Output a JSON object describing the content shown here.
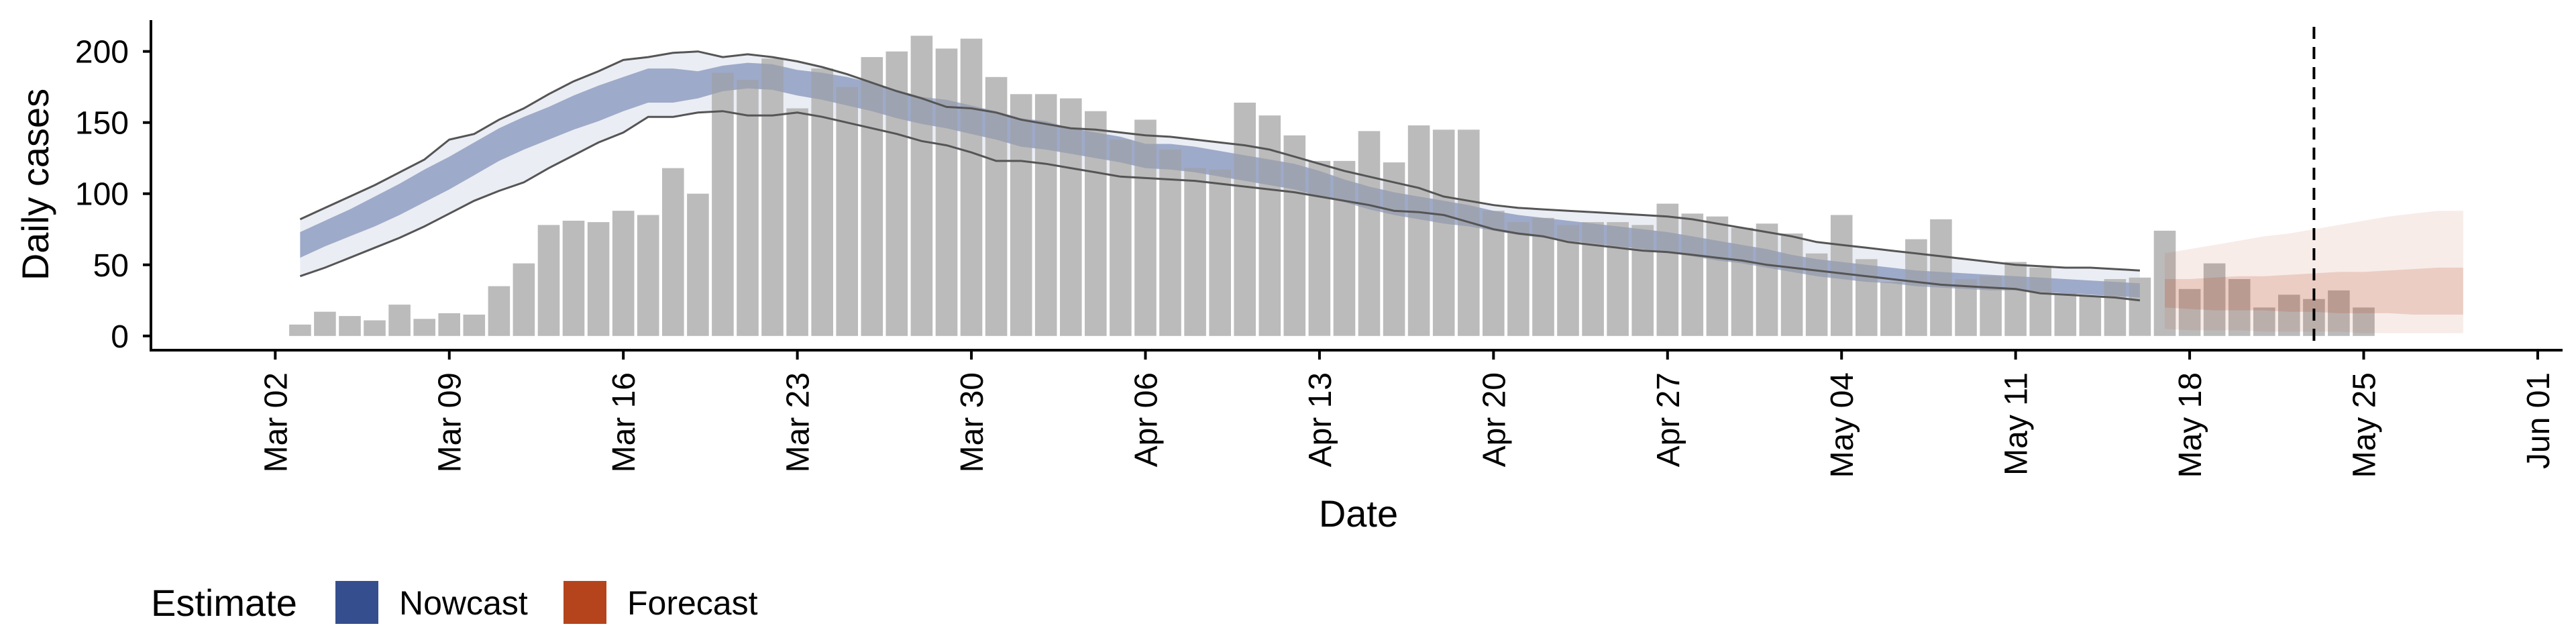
{
  "chart_data": {
    "type": "bar",
    "xlabel": "Date",
    "ylabel": "Daily cases",
    "ylim": [
      -10,
      222
    ],
    "y_ticks": [
      0,
      50,
      100,
      150,
      200
    ],
    "x_ticks": [
      "Mar 02",
      "Mar 09",
      "Mar 16",
      "Mar 23",
      "Mar 30",
      "Apr 06",
      "Apr 13",
      "Apr 20",
      "Apr 27",
      "May 04",
      "May 11",
      "May 18",
      "May 25",
      "Jun 01"
    ],
    "x_range": [
      "2020-02-26",
      "2020-06-02"
    ],
    "grid": false,
    "bar_color": "#bbbbbb",
    "bars": {
      "start_date": "2020-03-03",
      "values": [
        8,
        17,
        14,
        11,
        22,
        12,
        16,
        15,
        35,
        51,
        78,
        81,
        80,
        88,
        85,
        118,
        100,
        185,
        180,
        195,
        160,
        188,
        175,
        196,
        200,
        211,
        202,
        209,
        182,
        170,
        170,
        167,
        158,
        138,
        152,
        131,
        118,
        117,
        164,
        155,
        141,
        123,
        123,
        144,
        122,
        148,
        145,
        145,
        88,
        80,
        83,
        78,
        80,
        80,
        78,
        93,
        86,
        84,
        76,
        79,
        72,
        58,
        85,
        54,
        38,
        68,
        82,
        40,
        42,
        52,
        48,
        30,
        28,
        40,
        41,
        74,
        33,
        51,
        40,
        20,
        29,
        26,
        32,
        20
      ]
    },
    "series": [
      {
        "name": "Nowcast",
        "color": "#354f8e",
        "start_date": "2020-03-03",
        "median": [
          64,
          72,
          80,
          88,
          97,
          106,
          115,
          125,
          135,
          143,
          150,
          158,
          164,
          170,
          176,
          176,
          176,
          181,
          183,
          182,
          178,
          176,
          172,
          168,
          163,
          159,
          156,
          152,
          148,
          143,
          141,
          137,
          134,
          131,
          126,
          126,
          124,
          121,
          118,
          115,
          112,
          107,
          102,
          97,
          93,
          90,
          87,
          84,
          81,
          78,
          76,
          74,
          72,
          70,
          68,
          66,
          63,
          60,
          57,
          54,
          51,
          48,
          46,
          44,
          42,
          40,
          39,
          38,
          37,
          37,
          36,
          35,
          34,
          33,
          32
        ],
        "inner_low": [
          55,
          63,
          70,
          77,
          85,
          94,
          103,
          113,
          123,
          131,
          138,
          145,
          151,
          158,
          164,
          164,
          167,
          172,
          174,
          173,
          169,
          166,
          162,
          158,
          153,
          149,
          146,
          142,
          138,
          133,
          131,
          128,
          125,
          122,
          118,
          117,
          115,
          112,
          109,
          106,
          103,
          98,
          94,
          89,
          85,
          82,
          79,
          77,
          74,
          71,
          69,
          67,
          65,
          63,
          61,
          59,
          56,
          53,
          51,
          48,
          45,
          42,
          40,
          38,
          37,
          35,
          34,
          33,
          32,
          32,
          31,
          30,
          29,
          28,
          27
        ],
        "inner_high": [
          73,
          81,
          89,
          98,
          107,
          117,
          126,
          136,
          146,
          154,
          161,
          169,
          176,
          182,
          188,
          188,
          186,
          190,
          192,
          191,
          187,
          185,
          182,
          178,
          173,
          168,
          166,
          162,
          158,
          153,
          151,
          146,
          143,
          140,
          135,
          135,
          133,
          130,
          127,
          124,
          121,
          116,
          110,
          105,
          101,
          98,
          95,
          92,
          88,
          85,
          83,
          81,
          79,
          77,
          75,
          73,
          70,
          67,
          64,
          61,
          57,
          54,
          52,
          50,
          48,
          46,
          45,
          44,
          43,
          42,
          41,
          40,
          39,
          38,
          37
        ],
        "low": [
          42,
          48,
          55,
          62,
          69,
          77,
          86,
          95,
          102,
          108,
          118,
          127,
          136,
          143,
          154,
          154,
          157,
          158,
          155,
          155,
          157,
          154,
          150,
          146,
          142,
          137,
          134,
          129,
          123,
          123,
          121,
          118,
          115,
          112,
          111,
          110,
          109,
          107,
          105,
          103,
          101,
          98,
          95,
          92,
          88,
          87,
          85,
          80,
          75,
          72,
          70,
          66,
          64,
          62,
          60,
          59,
          57,
          55,
          53,
          50,
          48,
          46,
          44,
          42,
          40,
          38,
          36,
          35,
          34,
          33,
          30,
          29,
          28,
          27,
          25
        ],
        "high": [
          82,
          90,
          98,
          106,
          115,
          124,
          138,
          142,
          152,
          160,
          170,
          179,
          186,
          194,
          196,
          199,
          200,
          196,
          198,
          196,
          193,
          189,
          184,
          178,
          172,
          167,
          161,
          160,
          157,
          152,
          149,
          146,
          145,
          143,
          141,
          140,
          138,
          136,
          134,
          131,
          126,
          121,
          116,
          112,
          108,
          104,
          98,
          95,
          92,
          90,
          89,
          88,
          87,
          86,
          85,
          84,
          82,
          79,
          76,
          73,
          70,
          66,
          64,
          62,
          60,
          58,
          56,
          54,
          52,
          50,
          49,
          48,
          48,
          47,
          46
        ]
      },
      {
        "name": "Forecast",
        "color": "#b5441c",
        "start_date": "2020-05-17",
        "median": [
          30,
          29,
          28,
          28,
          27,
          27,
          26,
          26,
          26,
          26,
          26,
          25,
          25
        ],
        "inner_low": [
          20,
          19,
          18,
          18,
          18,
          17,
          17,
          16,
          16,
          16,
          15,
          15,
          15
        ],
        "inner_high": [
          40,
          40,
          41,
          42,
          42,
          43,
          44,
          45,
          45,
          46,
          47,
          48,
          48
        ],
        "low": [
          5,
          4,
          4,
          4,
          3,
          3,
          3,
          3,
          2,
          2,
          2,
          2,
          2
        ],
        "high": [
          58,
          61,
          64,
          67,
          70,
          72,
          75,
          78,
          81,
          84,
          86,
          88,
          88
        ]
      }
    ],
    "vline": {
      "date": "2020-05-23",
      "style": "dashed"
    },
    "legend": {
      "title": "Estimate",
      "position": "bottom-left",
      "entries": [
        "Nowcast",
        "Forecast"
      ]
    }
  }
}
